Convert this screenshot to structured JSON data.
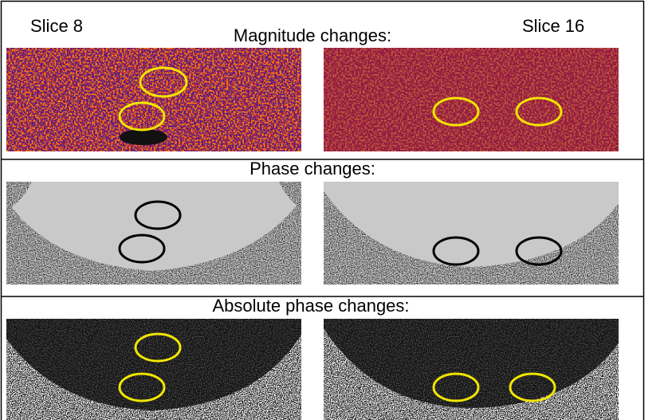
{
  "labels": {
    "slice_left": "Slice 8",
    "slice_right": "Slice 16"
  },
  "sections": [
    {
      "title": "Magnitude changes:"
    },
    {
      "title": "Phase changes:"
    },
    {
      "title": "Absolute phase changes:"
    }
  ]
}
